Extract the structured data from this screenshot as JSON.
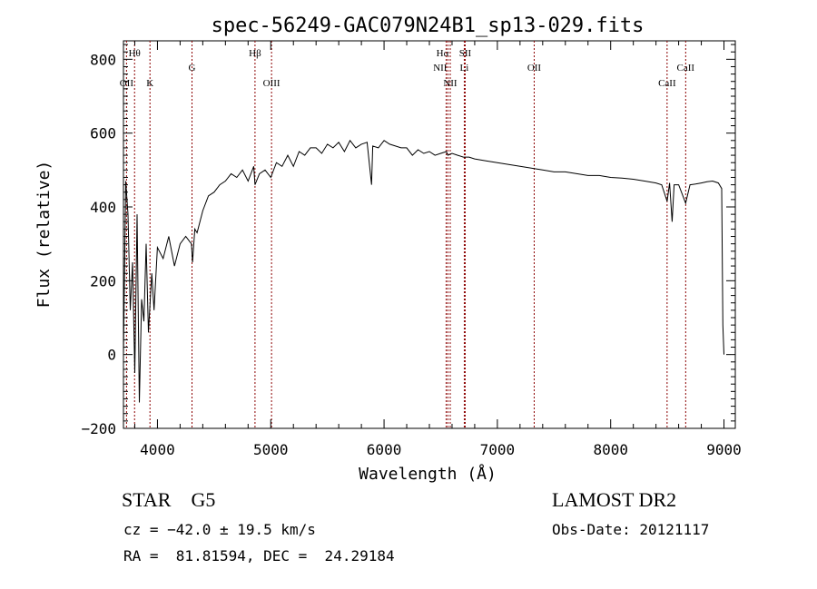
{
  "chart_data": {
    "type": "line",
    "title": "spec-56249-GAC079N24B1_sp13-029.fits",
    "xlabel": "Wavelength (Å)",
    "ylabel": "Flux (relative)",
    "xlim": [
      3700,
      9100
    ],
    "ylim": [
      -200,
      850
    ],
    "x_ticks": [
      "4000",
      "5000",
      "6000",
      "7000",
      "8000",
      "9000"
    ],
    "y_ticks": [
      "−200",
      "0",
      "200",
      "400",
      "600",
      "800"
    ],
    "x_tick_values": [
      4000,
      5000,
      6000,
      7000,
      8000,
      9000
    ],
    "y_tick_values": [
      -200,
      0,
      200,
      400,
      600,
      800
    ],
    "grid": false,
    "line_color": "#000000",
    "marker_color": "#8b0000",
    "series": [
      {
        "x": [
          3700,
          3720,
          3740,
          3760,
          3780,
          3800,
          3820,
          3840,
          3860,
          3880,
          3900,
          3920,
          3950,
          3970,
          4000,
          4050,
          4100,
          4150,
          4200,
          4250,
          4300,
          4310,
          4330,
          4350,
          4400,
          4450,
          4500,
          4550,
          4600,
          4650,
          4700,
          4750,
          4800,
          4850,
          4861,
          4900,
          4950,
          5000,
          5050,
          5100,
          5150,
          5200,
          5250,
          5300,
          5350,
          5400,
          5450,
          5500,
          5550,
          5600,
          5650,
          5700,
          5750,
          5800,
          5850,
          5890,
          5900,
          5950,
          6000,
          6050,
          6100,
          6150,
          6200,
          6250,
          6300,
          6350,
          6400,
          6450,
          6500,
          6550,
          6563,
          6600,
          6650,
          6700,
          6750,
          6800,
          6900,
          7000,
          7100,
          7200,
          7300,
          7400,
          7500,
          7600,
          7700,
          7800,
          7900,
          8000,
          8100,
          8200,
          8300,
          8400,
          8450,
          8498,
          8520,
          8542,
          8560,
          8600,
          8662,
          8700,
          8750,
          8800,
          8850,
          8900,
          8950,
          8980,
          8990,
          9000
        ],
        "y": [
          0,
          470,
          380,
          120,
          250,
          -50,
          380,
          -130,
          150,
          90,
          300,
          60,
          220,
          120,
          290,
          260,
          320,
          240,
          300,
          320,
          300,
          250,
          340,
          330,
          390,
          430,
          440,
          460,
          470,
          490,
          480,
          500,
          470,
          510,
          460,
          490,
          500,
          480,
          520,
          510,
          540,
          510,
          550,
          540,
          560,
          560,
          545,
          570,
          560,
          575,
          550,
          580,
          560,
          570,
          575,
          460,
          565,
          560,
          580,
          570,
          565,
          560,
          560,
          540,
          555,
          545,
          550,
          540,
          545,
          550,
          540,
          545,
          540,
          535,
          535,
          530,
          525,
          520,
          515,
          510,
          505,
          500,
          495,
          495,
          490,
          485,
          485,
          480,
          478,
          475,
          470,
          465,
          460,
          415,
          465,
          360,
          460,
          460,
          410,
          460,
          462,
          465,
          468,
          470,
          465,
          450,
          80,
          0
        ]
      }
    ],
    "lines": [
      {
        "label": "Hθ",
        "x": 3798,
        "row": 1,
        "align": "center"
      },
      {
        "label": "OII",
        "x": 3727,
        "row": 3,
        "align": "center"
      },
      {
        "label": "K",
        "x": 3934,
        "row": 3,
        "align": "center"
      },
      {
        "label": "G",
        "x": 4305,
        "row": 2,
        "align": "center"
      },
      {
        "label": "Hβ",
        "x": 4861,
        "row": 1,
        "align": "center"
      },
      {
        "label": "OIII",
        "x": 5007,
        "row": 3,
        "align": "center"
      },
      {
        "label": "Hα",
        "x": 6563,
        "row": 1,
        "align": "right"
      },
      {
        "label": "SII",
        "x": 6716,
        "row": 1,
        "align": "center"
      },
      {
        "label": "NII",
        "x": 6548,
        "row": 2,
        "align": "right"
      },
      {
        "label": "Li",
        "x": 6708,
        "row": 2,
        "align": "center"
      },
      {
        "label": "NII",
        "x": 6584,
        "row": 3,
        "align": "center"
      },
      {
        "label": "OII",
        "x": 7325,
        "row": 2,
        "align": "center"
      },
      {
        "label": "CaII",
        "x": 8498,
        "row": 3,
        "align": "center"
      },
      {
        "label": "CaII",
        "x": 8662,
        "row": 2,
        "align": "center"
      }
    ]
  },
  "info": {
    "class_label": "STAR    G5",
    "cz_text": "cz = −42.0 ± 19.5 km/s",
    "radec_text": "RA =  81.81594, DEC =  24.29184",
    "survey_label": "LAMOST DR2",
    "obs_date_text": "Obs-Date: 20121117"
  }
}
